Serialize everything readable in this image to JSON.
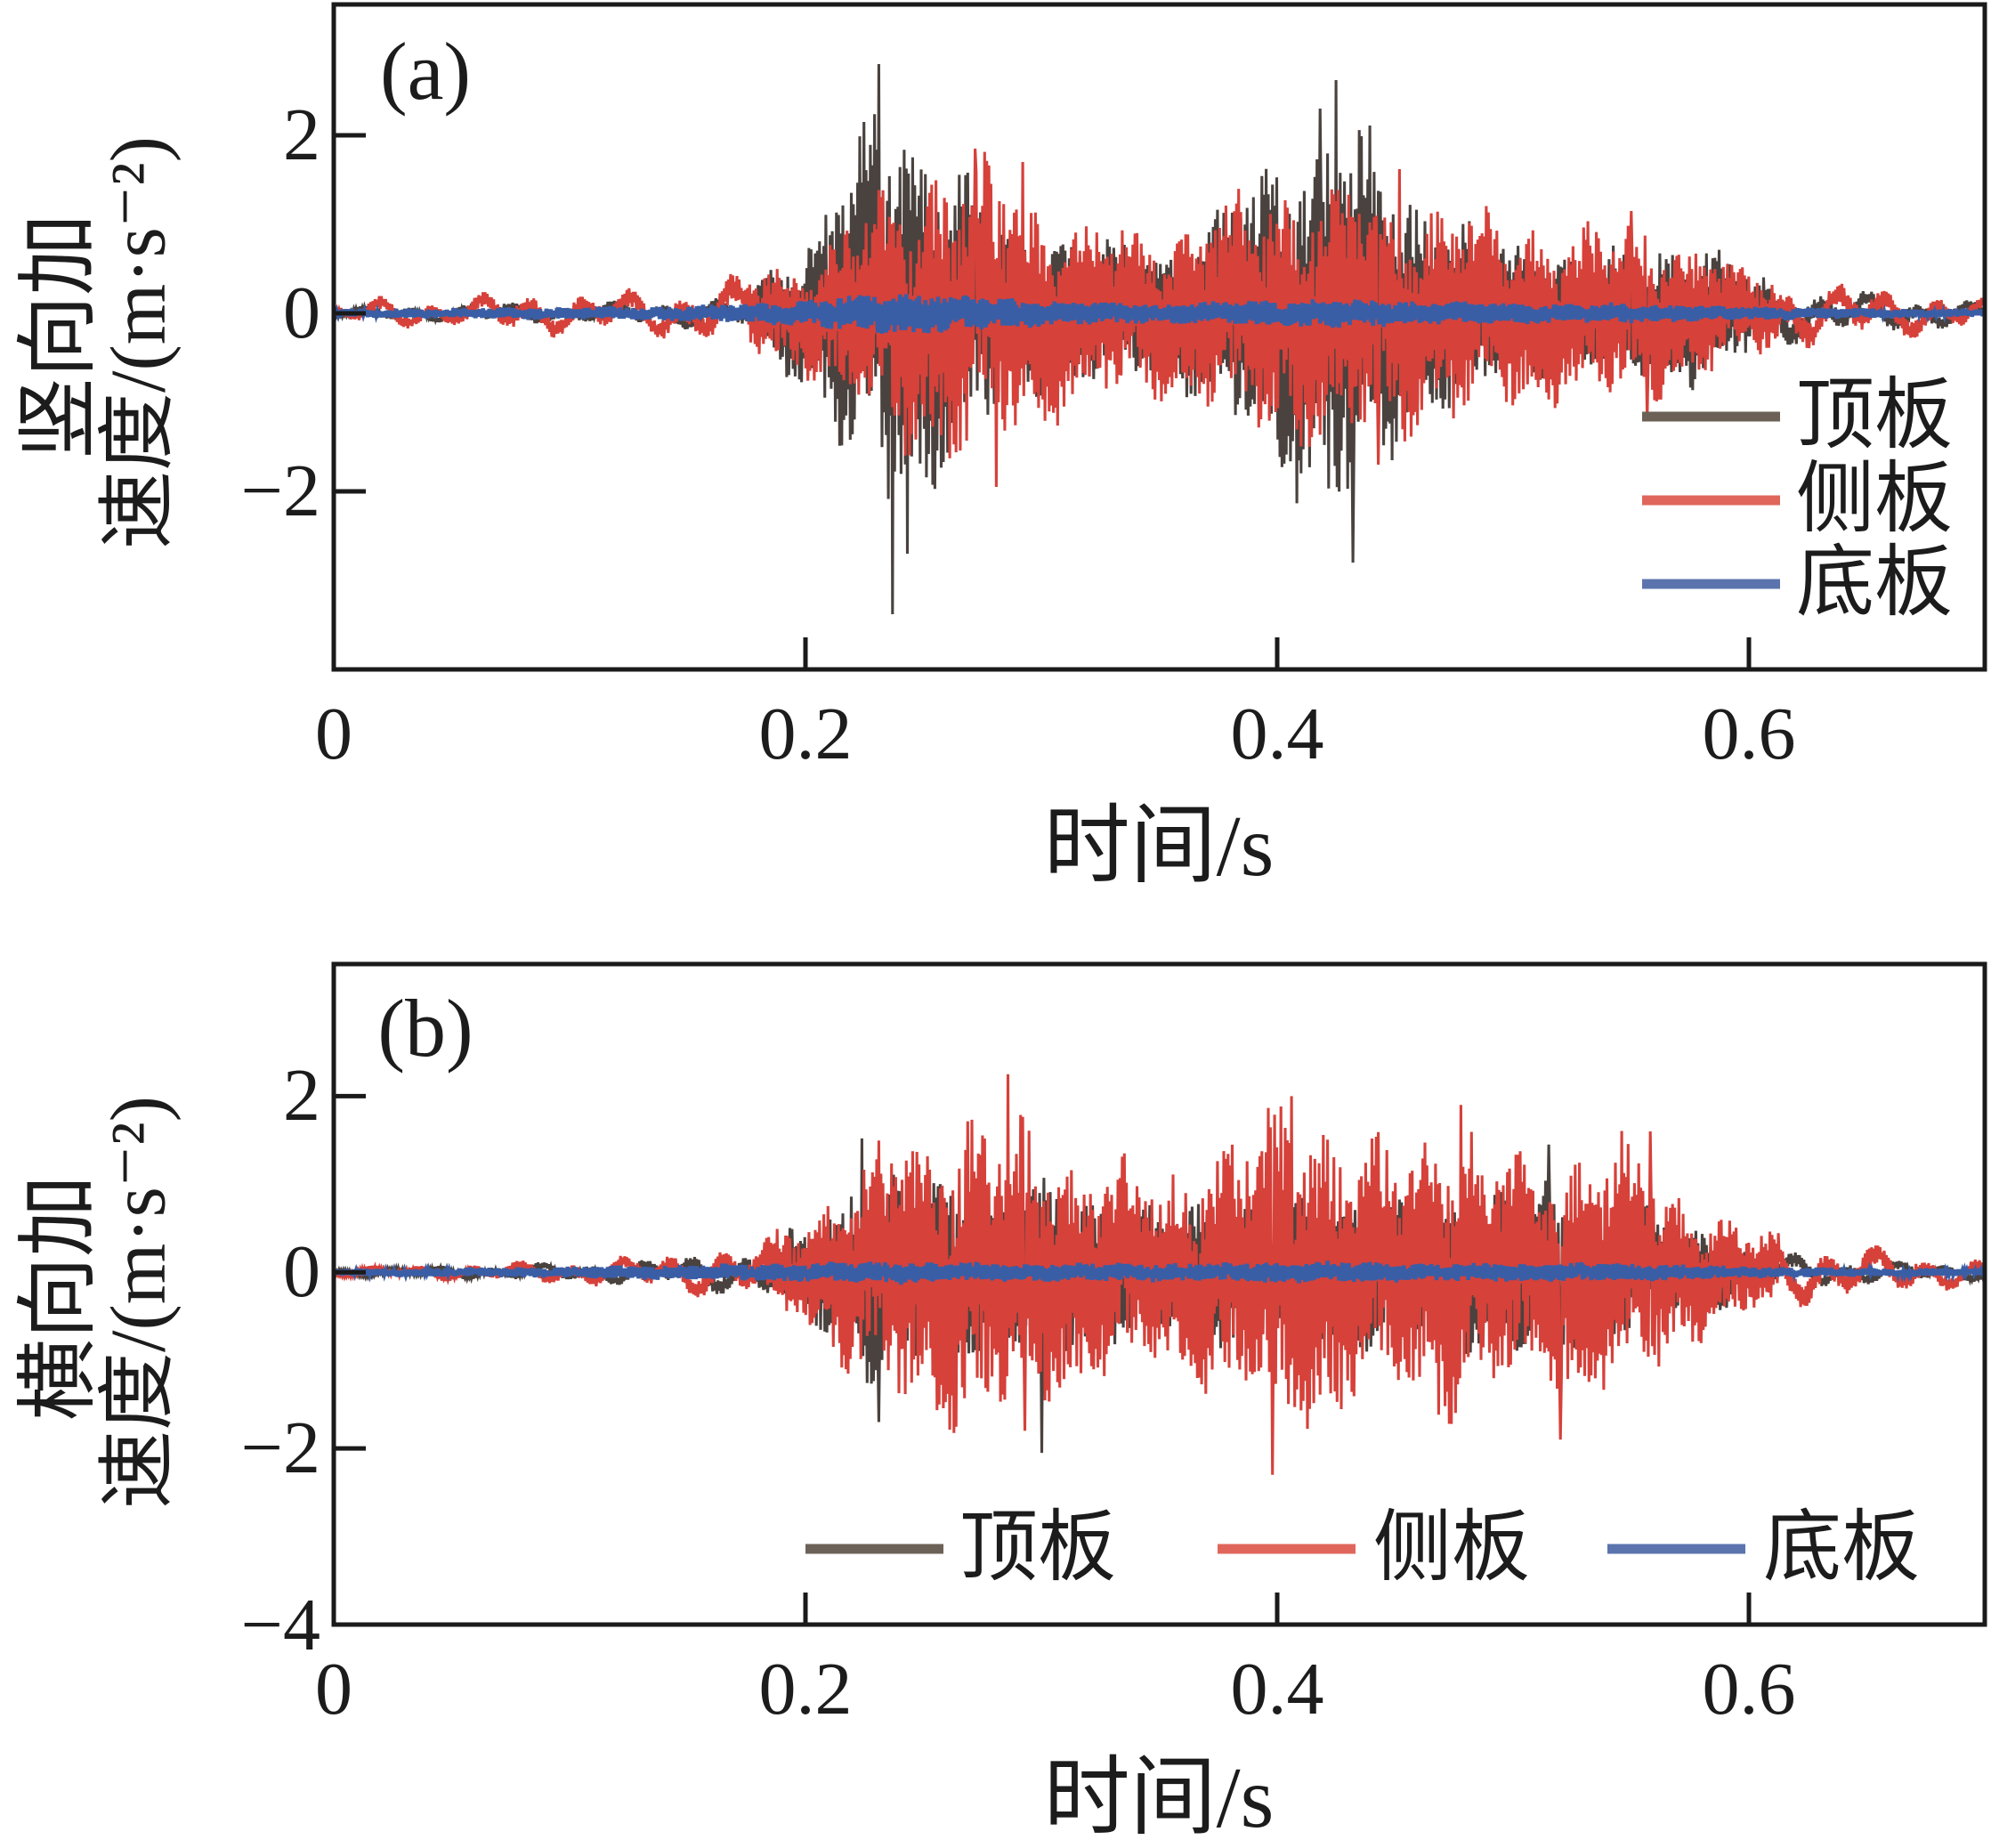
{
  "figure": {
    "background": "#ffffff",
    "axis_color": "#1a1a1a"
  },
  "panels": [
    {
      "id": "a",
      "label": "(a)",
      "ylabel_line1": "竖向加",
      "ylabel_line2": "速度/(m·s⁻²)",
      "xlabel": "时间/s",
      "yticks": [
        "2",
        "0",
        "−2"
      ],
      "xticks": [
        "0",
        "0.2",
        "0.4",
        "0.6"
      ],
      "legend": [
        "顶板",
        "侧板",
        "底板"
      ]
    },
    {
      "id": "b",
      "label": "(b)",
      "ylabel_line1": "横向加",
      "ylabel_line2": "速度/(m·s⁻²)",
      "xlabel": "时间/s",
      "yticks": [
        "2",
        "0",
        "−2",
        "−4"
      ],
      "xticks": [
        "0",
        "0.2",
        "0.4",
        "0.6"
      ],
      "legend": [
        "顶板",
        "侧板",
        "底板"
      ]
    }
  ],
  "chart_data": [
    {
      "type": "line",
      "title": "(a)",
      "xlabel": "时间/s",
      "ylabel": "竖向加速度/(m·s⁻²)",
      "xlim": [
        0,
        0.7
      ],
      "ylim": [
        -4,
        3.47
      ],
      "xticks": [
        0,
        0.2,
        0.4,
        0.6
      ],
      "yticks": [
        2,
        0,
        -2
      ],
      "grid": false,
      "legend_position": "inside-right",
      "envelope_t": [
        0,
        0.025,
        0.05,
        0.075,
        0.1,
        0.125,
        0.15,
        0.175,
        0.2,
        0.225,
        0.25,
        0.275,
        0.3,
        0.325,
        0.35,
        0.375,
        0.4,
        0.425,
        0.45,
        0.475,
        0.5,
        0.525,
        0.55,
        0.575,
        0.6,
        0.625,
        0.65,
        0.675,
        0.7
      ],
      "series": [
        {
          "name": "顶板",
          "color": "#4a423e",
          "legend_color": "#6b6156",
          "envelope_amp": [
            0.06,
            0.1,
            0.1,
            0.14,
            0.12,
            0.15,
            0.18,
            0.25,
            0.9,
            2.4,
            2.2,
            1.4,
            1.0,
            0.85,
            0.75,
            1.2,
            1.9,
            2.5,
            1.7,
            1.1,
            0.85,
            0.65,
            0.75,
            0.9,
            0.5,
            0.3,
            0.25,
            0.2,
            0.15
          ],
          "peaks": [
            [
              0.231,
              2.8
            ],
            [
              0.237,
              -3.38
            ],
            [
              0.243,
              -2.7
            ],
            [
              0.418,
              2.3
            ],
            [
              0.425,
              2.62
            ],
            [
              0.432,
              -2.8
            ]
          ]
        },
        {
          "name": "侧板",
          "color": "#d6413a",
          "legend_color": "#e0665b",
          "envelope_amp": [
            0.1,
            0.22,
            0.15,
            0.3,
            0.25,
            0.3,
            0.35,
            0.45,
            0.7,
            1.3,
            1.7,
            1.8,
            1.4,
            1.05,
            0.95,
            1.3,
            1.5,
            1.55,
            1.45,
            1.3,
            1.15,
            1.0,
            1.1,
            0.85,
            0.5,
            0.4,
            0.35,
            0.28,
            0.18
          ],
          "peaks": [
            [
              0.272,
              1.85
            ],
            [
              0.281,
              -1.95
            ],
            [
              0.292,
              1.7
            ],
            [
              0.443,
              -1.7
            ],
            [
              0.452,
              1.62
            ],
            [
              0.55,
              1.15
            ],
            [
              0.557,
              -1.2
            ]
          ]
        },
        {
          "name": "底板",
          "color": "#3a5ea6",
          "legend_color": "#5b74ae",
          "envelope_amp": [
            0.05,
            0.06,
            0.06,
            0.07,
            0.07,
            0.08,
            0.09,
            0.12,
            0.16,
            0.22,
            0.25,
            0.2,
            0.15,
            0.13,
            0.11,
            0.13,
            0.16,
            0.18,
            0.15,
            0.13,
            0.12,
            0.11,
            0.12,
            0.1,
            0.08,
            0.07,
            0.06,
            0.05,
            0.05
          ],
          "peaks": []
        }
      ]
    },
    {
      "type": "line",
      "title": "(b)",
      "xlabel": "时间/s",
      "ylabel": "横向加速度/(m·s⁻²)",
      "xlim": [
        0,
        0.7
      ],
      "ylim": [
        -4,
        3.5
      ],
      "xticks": [
        0,
        0.2,
        0.4,
        0.6
      ],
      "yticks": [
        2,
        0,
        -2,
        -4
      ],
      "grid": false,
      "legend_position": "inside-bottom",
      "envelope_t": [
        0,
        0.025,
        0.05,
        0.075,
        0.1,
        0.125,
        0.15,
        0.175,
        0.2,
        0.225,
        0.25,
        0.275,
        0.3,
        0.325,
        0.35,
        0.375,
        0.4,
        0.425,
        0.45,
        0.475,
        0.5,
        0.525,
        0.55,
        0.575,
        0.6,
        0.625,
        0.65,
        0.675,
        0.7
      ],
      "series": [
        {
          "name": "顶板",
          "color": "#4a423e",
          "legend_color": "#6b6156",
          "envelope_amp": [
            0.05,
            0.07,
            0.08,
            0.1,
            0.12,
            0.15,
            0.2,
            0.3,
            0.55,
            1.3,
            1.1,
            0.95,
            1.05,
            0.85,
            0.75,
            0.9,
            0.75,
            1.0,
            0.9,
            0.85,
            1.05,
            0.95,
            0.8,
            0.55,
            0.35,
            0.2,
            0.15,
            0.12,
            0.1
          ],
          "peaks": [
            [
              0.224,
              1.52
            ],
            [
              0.231,
              -1.7
            ],
            [
              0.3,
              -2.05
            ],
            [
              0.515,
              1.45
            ],
            [
              0.52,
              -1.6
            ]
          ]
        },
        {
          "name": "侧板",
          "color": "#d6413a",
          "legend_color": "#e0665b",
          "envelope_amp": [
            0.06,
            0.09,
            0.1,
            0.13,
            0.16,
            0.2,
            0.28,
            0.38,
            0.6,
            1.4,
            1.7,
            2.0,
            1.55,
            1.35,
            1.25,
            1.5,
            2.1,
            1.75,
            1.5,
            1.8,
            1.4,
            1.5,
            1.55,
            0.85,
            0.5,
            0.4,
            0.32,
            0.25,
            0.15
          ],
          "peaks": [
            [
              0.286,
              2.25
            ],
            [
              0.293,
              -1.8
            ],
            [
              0.398,
              -2.3
            ],
            [
              0.406,
              2.0
            ],
            [
              0.478,
              1.9
            ],
            [
              0.52,
              -1.9
            ],
            [
              0.558,
              1.6
            ]
          ]
        },
        {
          "name": "底板",
          "color": "#3a5ea6",
          "legend_color": "#5b74ae",
          "envelope_amp": [
            0.04,
            0.05,
            0.05,
            0.06,
            0.07,
            0.08,
            0.09,
            0.1,
            0.11,
            0.13,
            0.13,
            0.11,
            0.11,
            0.11,
            0.11,
            0.11,
            0.13,
            0.13,
            0.11,
            0.11,
            0.11,
            0.11,
            0.11,
            0.09,
            0.07,
            0.06,
            0.05,
            0.05,
            0.04
          ],
          "peaks": []
        }
      ]
    }
  ]
}
